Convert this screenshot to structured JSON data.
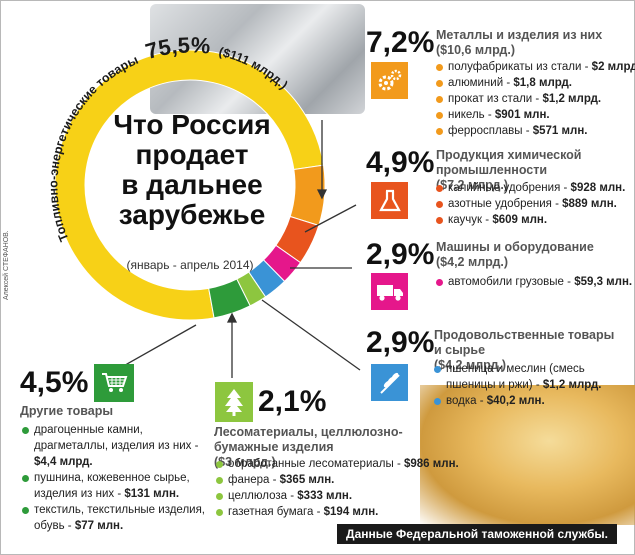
{
  "title": "Что Россия продает в дальнее зарубежье",
  "title_lines": [
    "Что Россия",
    "продает",
    "в дальнее",
    "зарубежье"
  ],
  "period": "(январь - апрель 2014)",
  "author": "Алексей СТЕФАНОВ.",
  "source": "Данные Федеральной таможенной службы.",
  "fuel": {
    "label": "Топливно-энергетические товары",
    "pct": "75,5%",
    "sum": "($111 млрд.)"
  },
  "categories": [
    {
      "pct": "7,2%",
      "title": "Металлы и изделия из них",
      "sum": "($10,6 млрд.)",
      "icon": "gears-icon",
      "color": "#f29a1c",
      "items": [
        {
          "name": "полуфабрикаты из стали",
          "value": "$2 млрд."
        },
        {
          "name": "алюминий",
          "value": "$1,8 млрд."
        },
        {
          "name": "прокат из стали",
          "value": "$1,2 млрд."
        },
        {
          "name": "никель",
          "value": "$901 млн."
        },
        {
          "name": "ферросплавы",
          "value": "$571 млн."
        }
      ]
    },
    {
      "pct": "4,9%",
      "title": "Продукция химической промышленности",
      "sum": "($7,2 млрд.)",
      "icon": "flask-icon",
      "color": "#e8541e",
      "items": [
        {
          "name": "калийные удобрения",
          "value": "$928 млн."
        },
        {
          "name": "азотные удобрения",
          "value": "$889 млн."
        },
        {
          "name": "каучук",
          "value": "$609 млн."
        }
      ]
    },
    {
      "pct": "2,9%",
      "title": "Машины и оборудование",
      "sum": "($4,2 млрд.)",
      "icon": "truck-icon",
      "color": "#e5178b",
      "items": [
        {
          "name": "автомобили грузовые",
          "value": "$59,3 млн."
        }
      ]
    },
    {
      "pct": "2,9%",
      "title": "Продовольственные товары и сырье",
      "sum": "($4,2 млрд.)",
      "icon": "wheat-icon",
      "color": "#3a93d6",
      "items": [
        {
          "name": "пшеница и меслин (смесь пшеницы и ржи)",
          "value": "$1,2 млрд."
        },
        {
          "name": "водка",
          "value": "$40,2 млн."
        }
      ]
    },
    {
      "pct": "2,1%",
      "title": "Лесоматериалы, целлюлозно-бумажные изделия",
      "sum": "($3 млрд.)",
      "icon": "tree-icon",
      "color": "#8dc63f",
      "items": [
        {
          "name": "обработанные лесоматериалы",
          "value": "$986 млн."
        },
        {
          "name": "фанера",
          "value": "$365 млн."
        },
        {
          "name": "целлюлоза",
          "value": "$333 млн."
        },
        {
          "name": "газетная бумага",
          "value": "$194 млн."
        }
      ]
    },
    {
      "pct": "4,5%",
      "title": "Другие товары",
      "sum": "",
      "icon": "cart-icon",
      "color": "#2e9b3a",
      "items": [
        {
          "name": "драгоценные камни, драгметаллы, изделия из них",
          "value": "$4,4 млрд."
        },
        {
          "name": "пушнина, кожевенное сырье, изделия из них",
          "value": "$131 млн."
        },
        {
          "name": "текстиль, текстильные изделия, обувь",
          "value": "$77 млн."
        }
      ]
    }
  ],
  "chart_data": {
    "type": "pie",
    "title": "Что Россия продает в дальнее зарубежье",
    "subtitle": "(январь - апрель 2014)",
    "categories": [
      "Топливно-энергетические товары",
      "Металлы и изделия из них",
      "Продукция химической промышленности",
      "Машины и оборудование",
      "Продовольственные товары и сырье",
      "Лесоматериалы, целлюлозно-бумажные изделия",
      "Другие товары"
    ],
    "values": [
      75.5,
      7.2,
      4.9,
      2.9,
      2.9,
      2.1,
      4.5
    ],
    "colors": [
      "#f7d117",
      "#f29a1c",
      "#e8541e",
      "#e5178b",
      "#3a93d6",
      "#8dc63f",
      "#2e9b3a"
    ]
  }
}
